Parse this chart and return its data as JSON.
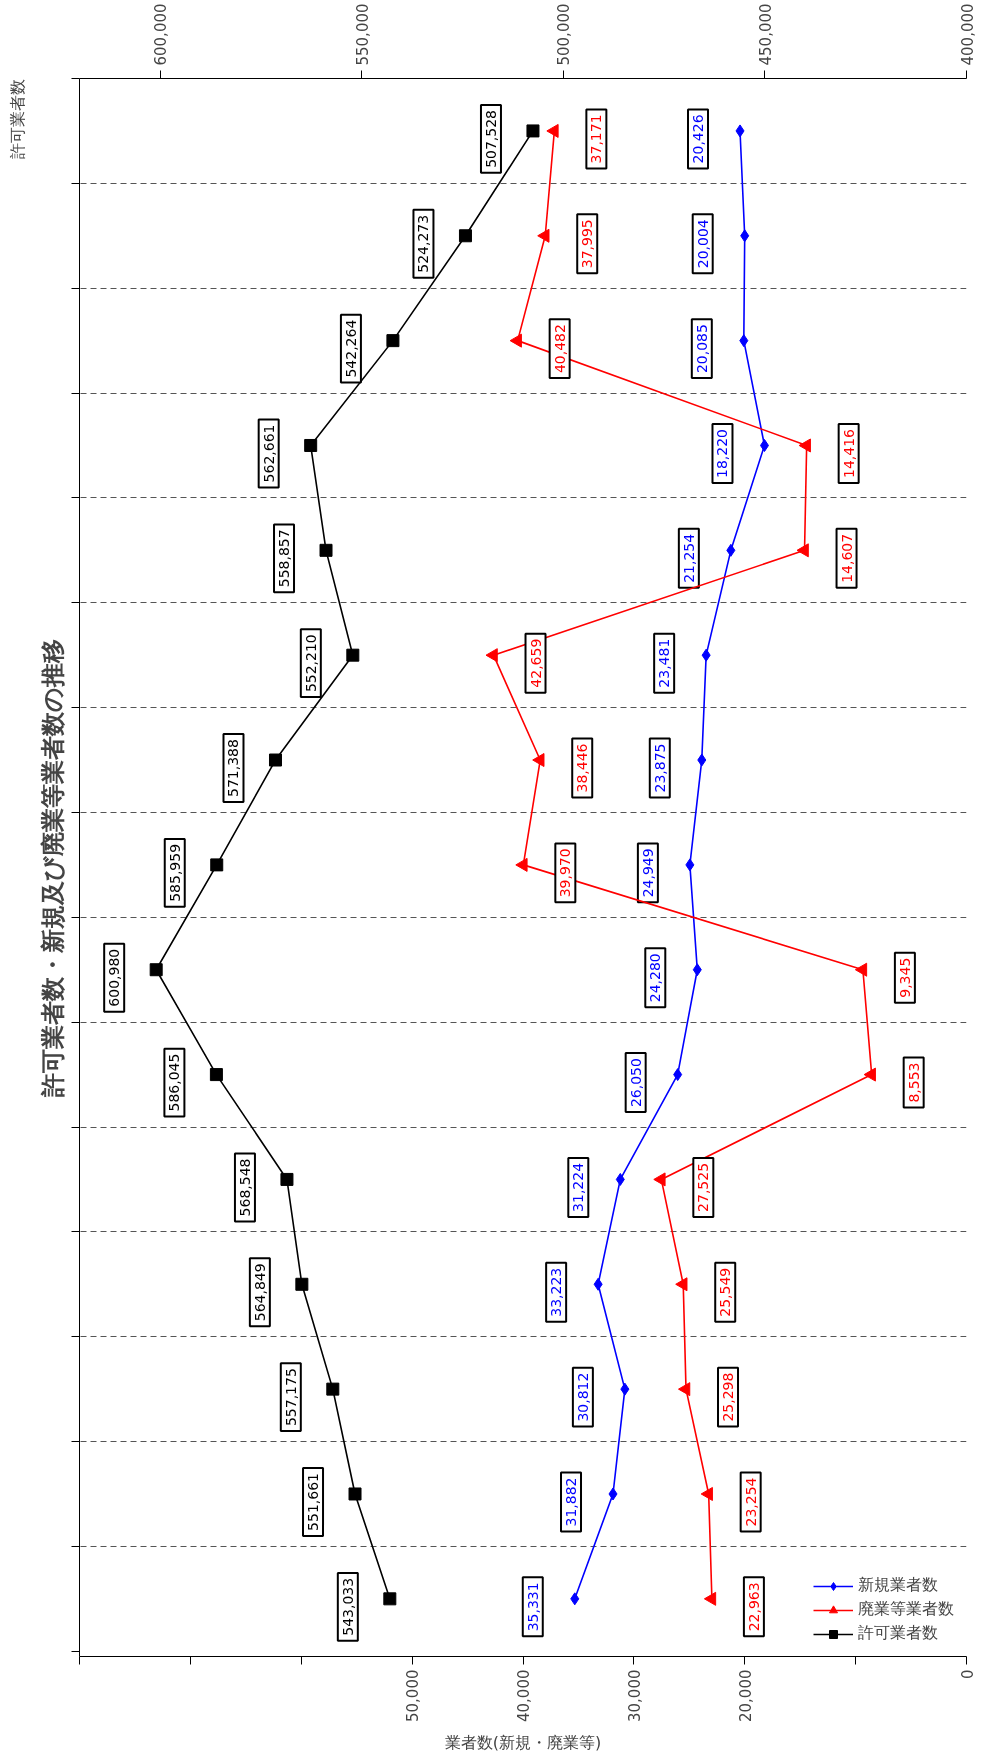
{
  "chart_data": {
    "type": "line",
    "orientation": "horizontal",
    "title": "許可業者数・新規及び廃業等業者数の推移",
    "xlabel": "業者数(新規・廃業等)",
    "x2label": "許可業者数",
    "categories": [
      null,
      null,
      null,
      null,
      null,
      null,
      null,
      null,
      null,
      null,
      null,
      null,
      null,
      null,
      null
    ],
    "series": [
      {
        "name": "新規業者数",
        "color": "#0000ff",
        "marker": "diamond",
        "values": [
          20426,
          20004,
          20085,
          18220,
          21254,
          23481,
          23875,
          24949,
          24280,
          26050,
          31224,
          33223,
          30812,
          31882,
          35331
        ],
        "value_labels": [
          "20,426",
          "20,004",
          "20,085",
          "18,220",
          "21,254",
          "23,481",
          "23,875",
          "24,949",
          "24,280",
          "26,050",
          "31,224",
          "33,223",
          "30,812",
          "31,882",
          "35,331"
        ]
      },
      {
        "name": "廃業等業者数",
        "color": "#ff0000",
        "marker": "triangle",
        "values": [
          37171,
          37995,
          40482,
          14416,
          14607,
          42659,
          38446,
          39970,
          9345,
          8553,
          27525,
          25549,
          25298,
          23254,
          22963
        ],
        "value_labels": [
          "37,171",
          "37,995",
          "40,482",
          "14,416",
          "14,607",
          "42,659",
          "38,446",
          "39,970",
          "9,345",
          "8,553",
          "27,525",
          "25,549",
          "25,298",
          "23,254",
          "22,963"
        ]
      },
      {
        "name": "許可業者数",
        "color": "#000000",
        "marker": "square",
        "axis": "x2",
        "values": [
          507528,
          524273,
          542264,
          562661,
          558857,
          552210,
          571388,
          585959,
          600980,
          586045,
          568548,
          564849,
          557175,
          551661,
          543033
        ],
        "value_labels": [
          "507,528",
          "524,273",
          "542,264",
          "562,661",
          "558,857",
          "552,210",
          "571,388",
          "585,959",
          "600,980",
          "586,045",
          "568,548",
          "564,849",
          "557,175",
          "551,661",
          "543,033"
        ]
      }
    ],
    "xlim": [
      80000,
      0
    ],
    "xticks": [
      {
        "value": 80000,
        "label": null
      },
      {
        "value": 70000,
        "label": null
      },
      {
        "value": 60000,
        "label": null
      },
      {
        "value": 50000,
        "label": "50,000"
      },
      {
        "value": 40000,
        "label": "40,000"
      },
      {
        "value": 30000,
        "label": "30,000"
      },
      {
        "value": 20000,
        "label": "20,000"
      },
      {
        "value": 10000,
        "label": null
      },
      {
        "value": 0,
        "label": "0"
      }
    ],
    "x2lim": [
      620000,
      400000
    ],
    "x2ticks": [
      {
        "value": 600000,
        "label": "600,000"
      },
      {
        "value": 550000,
        "label": "550,000"
      },
      {
        "value": 500000,
        "label": "500,000"
      },
      {
        "value": 450000,
        "label": "450,000"
      },
      {
        "value": 400000,
        "label": "400,000"
      }
    ],
    "grid": "y",
    "legend": "bottom right"
  }
}
